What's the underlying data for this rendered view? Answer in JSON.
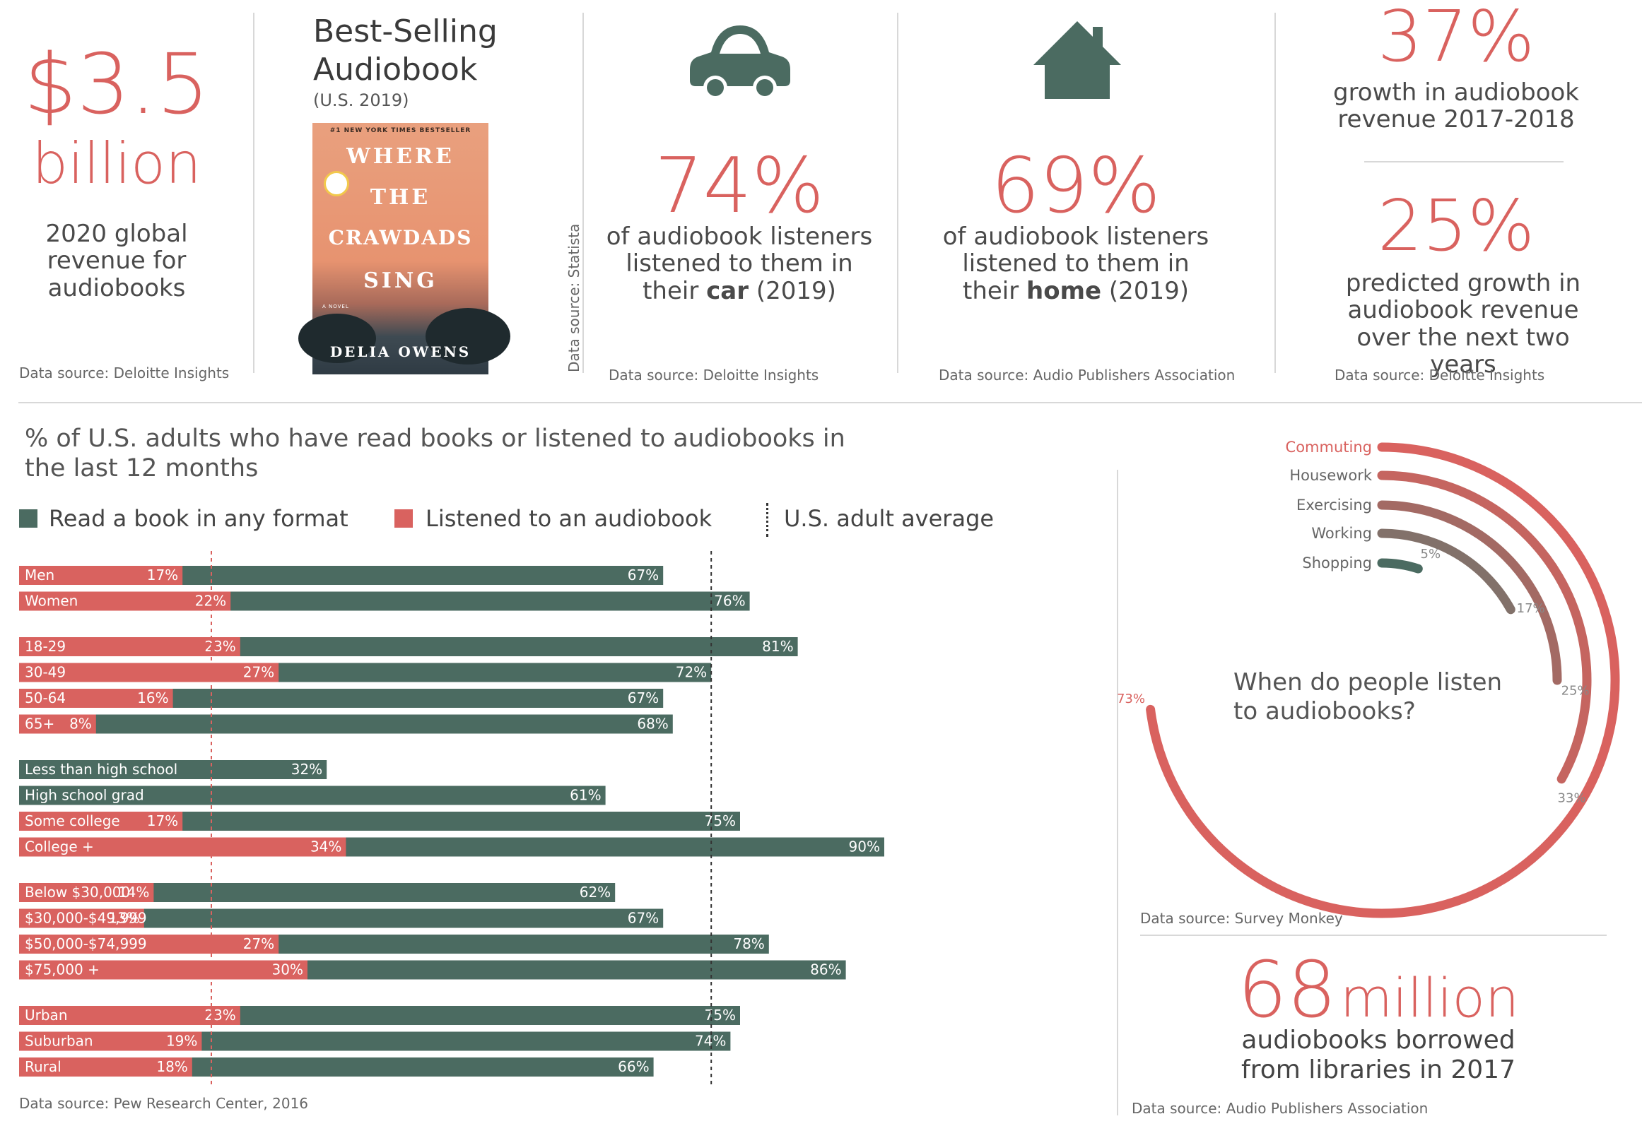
{
  "colors": {
    "red": "#d9625f",
    "green": "#4b6b61",
    "divider": "#d8d8d8"
  },
  "top": {
    "revenue": {
      "value": "$3.5",
      "unit": "billion",
      "desc": "2020 global revenue for audiobooks",
      "source": "Data source: Deloitte Insights"
    },
    "book": {
      "heading": "Best-Selling Audiobook",
      "sub": "(U.S. 2019)",
      "cover_tag": "#1 NEW YORK TIMES BESTSELLER",
      "cover_title": [
        "WHERE",
        "THE",
        "CRAWDADS",
        "SING"
      ],
      "cover_novel": "A NOVEL",
      "cover_author": "DELIA OWENS",
      "source": "Data source: Statista"
    },
    "car": {
      "icon": "car-icon",
      "value": "74%",
      "desc_pre": "of audiobook listeners listened to them in their",
      "desc_bold": "car",
      "desc_post": "(2019)",
      "source": "Data source: Deloitte Insights"
    },
    "home": {
      "icon": "house-icon",
      "value": "69%",
      "desc_pre": "of audiobook listeners listened to them in their",
      "desc_bold": "home",
      "desc_post": "(2019)",
      "source": "Data source: Audio Publishers Association"
    },
    "growth": {
      "value1": "37%",
      "desc1": "growth in audiobook revenue 2017-2018",
      "value2": "25%",
      "desc2": "predicted growth in audiobook revenue over the next two years",
      "source": "Data source: Deloitte Insights"
    }
  },
  "chart_data": [
    {
      "type": "bar",
      "title": "% of U.S. adults who have read books or listened to audiobooks in the last 12 months",
      "legend": [
        "Read a book in any format",
        "Listened to an audiobook",
        "U.S. adult average"
      ],
      "reference_lines": {
        "audiobook_average": 20,
        "book_average": 72
      },
      "categories": [
        "Men",
        "Women",
        "18-29",
        "30-49",
        "50-64",
        "65+",
        "Less than high school",
        "High school grad",
        "Some college",
        "College +",
        "Below $30,000",
        "$30,000-$49,999",
        "$50,000-$74,999",
        "$75,000 +",
        "Urban",
        "Suburban",
        "Rural"
      ],
      "groups": [
        2,
        4,
        4,
        4,
        3
      ],
      "series": [
        {
          "name": "Read a book in any format",
          "values": [
            67,
            76,
            81,
            72,
            67,
            68,
            32,
            61,
            75,
            90,
            62,
            67,
            78,
            86,
            75,
            74,
            66
          ]
        },
        {
          "name": "Listened to an audiobook",
          "values": [
            17,
            22,
            23,
            27,
            16,
            8,
            null,
            null,
            17,
            34,
            14,
            13,
            27,
            30,
            23,
            19,
            18
          ]
        }
      ],
      "xlim": [
        0,
        90
      ],
      "source": "Data source: Pew Research Center, 2016"
    },
    {
      "type": "radial-bar",
      "title": "When do people listen to audiobooks?",
      "categories": [
        "Commuting",
        "Housework",
        "Exercising",
        "Working",
        "Shopping"
      ],
      "values": [
        73,
        33,
        25,
        17,
        5
      ],
      "labels": [
        "73%",
        "33%",
        "25%",
        "17%",
        "5%"
      ],
      "source": "Data source: Survey Monkey"
    }
  ],
  "library": {
    "value": "68",
    "unit": "million",
    "desc": "audiobooks borrowed from libraries in 2017",
    "source": "Data source: Audio Publishers Association"
  }
}
